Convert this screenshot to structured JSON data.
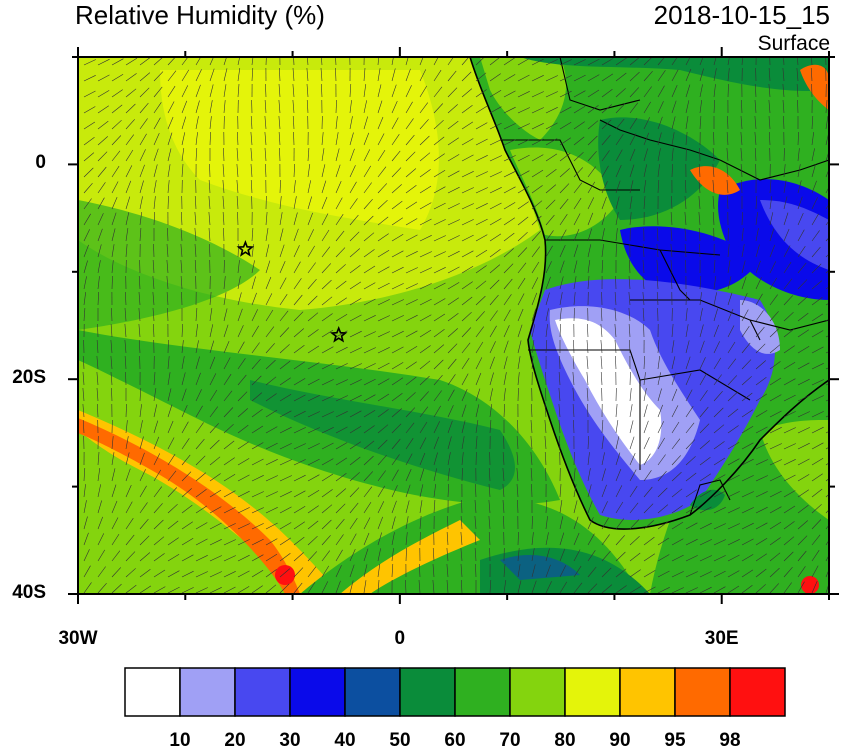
{
  "title": "Relative Humidity (%)",
  "datetime": "2018-10-15_15",
  "level": "Surface",
  "map": {
    "lon_range": [
      -30,
      40
    ],
    "lat_range": [
      -40,
      10
    ],
    "lon_ticks": [
      {
        "value": -30,
        "label": "30W"
      },
      {
        "value": 0,
        "label": "0"
      },
      {
        "value": 30,
        "label": "30E"
      }
    ],
    "lat_ticks": [
      {
        "value": 0,
        "label": "0"
      },
      {
        "value": -20,
        "label": "20S"
      },
      {
        "value": -40,
        "label": "40S"
      }
    ],
    "stars": [
      {
        "lon": -14.4,
        "lat": -7.9
      },
      {
        "lon": -5.7,
        "lat": -15.9
      }
    ]
  },
  "legend": {
    "levels": [
      "10",
      "20",
      "30",
      "40",
      "50",
      "60",
      "70",
      "80",
      "90",
      "95",
      "98"
    ],
    "colors": [
      "#ffffff",
      "#a0a0f5",
      "#4848f0",
      "#0a0aea",
      "#0c4fa0",
      "#0a8c3a",
      "#2fb020",
      "#84d40e",
      "#e4f40a",
      "#ffc400",
      "#ff6a00",
      "#ff1010"
    ]
  }
}
